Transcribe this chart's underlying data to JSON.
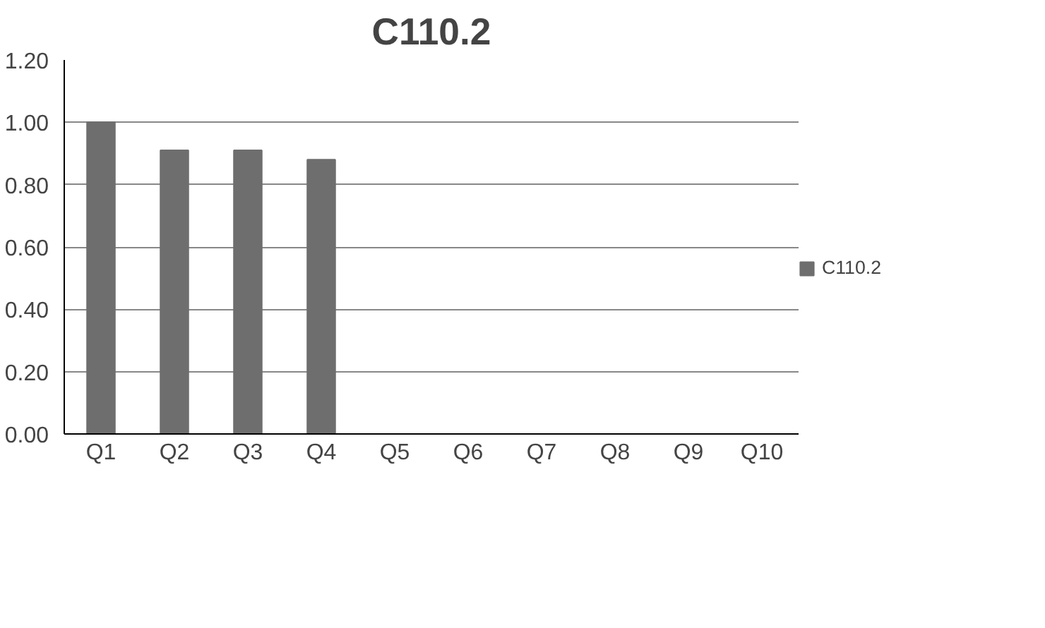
{
  "chart_data": {
    "type": "bar",
    "title": "C110.2",
    "categories": [
      "Q1",
      "Q2",
      "Q3",
      "Q4",
      "Q5",
      "Q6",
      "Q7",
      "Q8",
      "Q9",
      "Q10"
    ],
    "series": [
      {
        "name": "C110.2",
        "color": "#6e6e6e",
        "values": [
          1.0,
          0.91,
          0.91,
          0.88,
          null,
          null,
          null,
          null,
          null,
          null
        ]
      }
    ],
    "ylim": [
      0,
      1.2
    ],
    "yticks": [
      {
        "value": 0,
        "label": "0.00"
      },
      {
        "value": 0.2,
        "label": "0.20"
      },
      {
        "value": 0.4,
        "label": "0.40"
      },
      {
        "value": 0.6,
        "label": "0.60"
      },
      {
        "value": 0.8,
        "label": "0.80"
      },
      {
        "value": 1.0,
        "label": "1.00"
      },
      {
        "value": 1.2,
        "label": "1.20"
      }
    ],
    "grid": "y",
    "legend": "right"
  }
}
